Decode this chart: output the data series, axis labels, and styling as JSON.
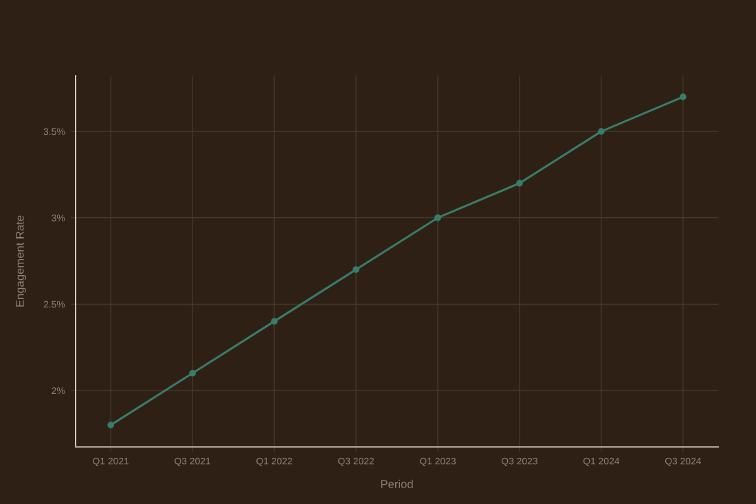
{
  "chart_data": {
    "type": "line",
    "xlabel": "Period",
    "ylabel": "Engagement Rate",
    "categories": [
      "Q1 2021",
      "Q3 2021",
      "Q1 2022",
      "Q3 2022",
      "Q1 2023",
      "Q3 2023",
      "Q1 2024",
      "Q3 2024"
    ],
    "series": [
      {
        "color": "#387c6c",
        "values": [
          1.8,
          2.1,
          2.4,
          2.7,
          3.0,
          3.2,
          3.5,
          3.7
        ]
      }
    ],
    "ylim": [
      1.673,
      3.823
    ],
    "yticks": [
      {
        "value": 2,
        "label": "2%"
      },
      {
        "value": 2.5,
        "label": "2.5%"
      },
      {
        "value": 3,
        "label": "3%"
      },
      {
        "value": 3.5,
        "label": "3.5%"
      }
    ],
    "grid": true,
    "marker": "circle",
    "line_style": "solid"
  }
}
